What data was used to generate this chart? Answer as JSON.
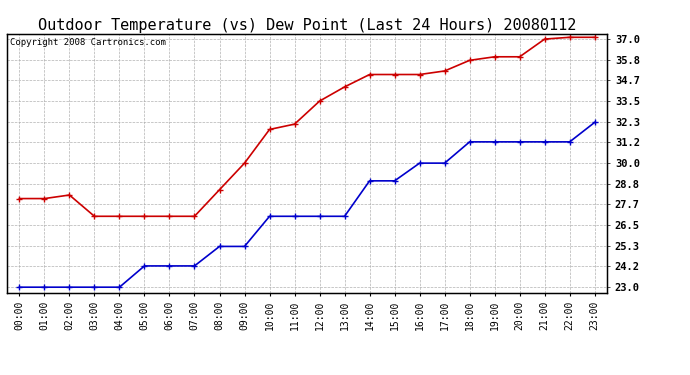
{
  "title": "Outdoor Temperature (vs) Dew Point (Last 24 Hours) 20080112",
  "copyright": "Copyright 2008 Cartronics.com",
  "x_labels": [
    "00:00",
    "01:00",
    "02:00",
    "03:00",
    "04:00",
    "05:00",
    "06:00",
    "07:00",
    "08:00",
    "09:00",
    "10:00",
    "11:00",
    "12:00",
    "13:00",
    "14:00",
    "15:00",
    "16:00",
    "17:00",
    "18:00",
    "19:00",
    "20:00",
    "21:00",
    "22:00",
    "23:00"
  ],
  "temp_values": [
    28.0,
    28.0,
    28.2,
    27.0,
    27.0,
    27.0,
    27.0,
    27.0,
    28.5,
    30.0,
    31.9,
    32.2,
    33.5,
    34.3,
    35.0,
    35.0,
    35.0,
    35.2,
    35.8,
    36.0,
    36.0,
    37.0,
    37.1,
    37.1
  ],
  "dew_values": [
    23.0,
    23.0,
    23.0,
    23.0,
    23.0,
    24.2,
    24.2,
    24.2,
    25.3,
    25.3,
    27.0,
    27.0,
    27.0,
    27.0,
    29.0,
    29.0,
    30.0,
    30.0,
    31.2,
    31.2,
    31.2,
    31.2,
    31.2,
    32.3
  ],
  "temp_color": "#cc0000",
  "dew_color": "#0000cc",
  "background_color": "#ffffff",
  "plot_bg_color": "#ffffff",
  "grid_color": "#aaaaaa",
  "title_fontsize": 11,
  "ylabel_right": [
    "23.0",
    "24.2",
    "25.3",
    "26.5",
    "27.7",
    "28.8",
    "30.0",
    "31.2",
    "32.3",
    "33.5",
    "34.7",
    "35.8",
    "37.0"
  ],
  "ytick_values": [
    23.0,
    24.2,
    25.3,
    26.5,
    27.7,
    28.8,
    30.0,
    31.2,
    32.3,
    33.5,
    34.7,
    35.8,
    37.0
  ],
  "ylim": [
    22.7,
    37.3
  ],
  "marker": "+",
  "marker_size": 5,
  "linewidth": 1.2
}
